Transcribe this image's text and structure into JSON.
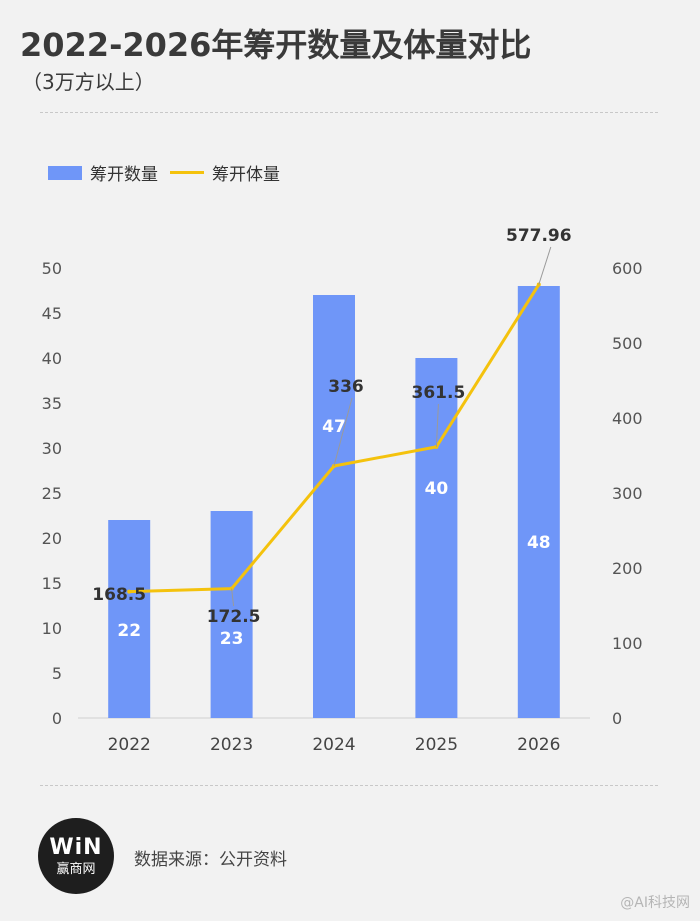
{
  "header": {
    "title": "2022-2026年筹开数量及体量对比",
    "subtitle": "（3万方以上）"
  },
  "legend": {
    "bar_label": "筹开数量",
    "line_label": "筹开体量"
  },
  "footer": {
    "logo_mark": "WiN",
    "logo_name": "赢商网",
    "source": "数据来源：公开资料",
    "watermark": "@AI科技网"
  },
  "colors": {
    "bar": "#6f96f8",
    "line": "#f4c20d",
    "text": "#3a3a3a"
  },
  "chart_data": {
    "type": "bar",
    "title": "2022-2026年筹开数量及体量对比",
    "subtitle": "（3万方以上）",
    "categories": [
      "2022",
      "2023",
      "2024",
      "2025",
      "2026"
    ],
    "series": [
      {
        "name": "筹开数量",
        "type": "bar",
        "axis": "left",
        "values": [
          22,
          23,
          47,
          40,
          48
        ],
        "labels": [
          "22",
          "23",
          "47",
          "40",
          "48"
        ]
      },
      {
        "name": "筹开体量",
        "type": "line",
        "axis": "right",
        "values": [
          168.5,
          172.5,
          336,
          361.5,
          577.96
        ],
        "labels": [
          "168.5",
          "172.5",
          "336",
          "361.5",
          "577.96"
        ]
      }
    ],
    "y_left": {
      "range": [
        0,
        50
      ],
      "ticks": [
        "0",
        "5",
        "10",
        "15",
        "20",
        "25",
        "30",
        "35",
        "40",
        "45",
        "50"
      ]
    },
    "y_right": {
      "range": [
        0,
        600
      ],
      "ticks": [
        "0",
        "100",
        "200",
        "300",
        "400",
        "500",
        "600"
      ]
    },
    "grid": false,
    "legend_position": "top-left"
  }
}
